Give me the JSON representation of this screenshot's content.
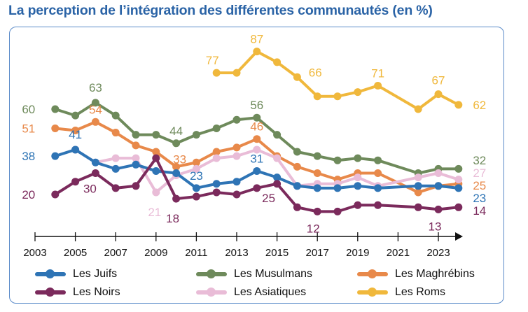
{
  "chart_data": {
    "type": "line",
    "title": "La perception de l’intégration des différentes communautés (en %)",
    "xlabel": "",
    "ylabel": "",
    "xlim": [
      2003,
      2024
    ],
    "ylim": [
      0,
      100
    ],
    "xticks": [
      "2003",
      "2005",
      "2007",
      "2009",
      "2011",
      "2013",
      "2015",
      "2017",
      "2019",
      "2021",
      "2023"
    ],
    "grid": false,
    "legend_position": "bottom",
    "series": [
      {
        "name": "Les Juifs",
        "color": "#2e74b5",
        "x": [
          2004,
          2005,
          2006,
          2007,
          2008,
          2009,
          2010,
          2011,
          2012,
          2013,
          2014,
          2015,
          2016,
          2017,
          2018,
          2019,
          2020,
          2022,
          2023,
          2024
        ],
        "values": [
          38,
          41,
          35,
          32,
          34,
          31,
          30,
          23,
          25,
          26,
          31,
          28,
          24,
          23,
          23,
          24,
          23,
          24,
          24,
          23
        ]
      },
      {
        "name": "Les Musulmans",
        "color": "#6e8a5b",
        "x": [
          2004,
          2005,
          2006,
          2007,
          2008,
          2009,
          2010,
          2011,
          2012,
          2013,
          2014,
          2015,
          2016,
          2017,
          2018,
          2019,
          2020,
          2022,
          2023,
          2024
        ],
        "values": [
          60,
          57,
          63,
          57,
          48,
          48,
          44,
          48,
          51,
          55,
          56,
          48,
          40,
          38,
          36,
          37,
          36,
          30,
          32,
          32
        ]
      },
      {
        "name": "Les Maghrébins",
        "color": "#e8894a",
        "x": [
          2004,
          2005,
          2006,
          2007,
          2008,
          2009,
          2010,
          2011,
          2012,
          2013,
          2014,
          2015,
          2016,
          2017,
          2018,
          2019,
          2020,
          2022,
          2023,
          2024
        ],
        "values": [
          51,
          50,
          54,
          49,
          43,
          40,
          33,
          35,
          40,
          42,
          46,
          38,
          33,
          30,
          27,
          30,
          30,
          21,
          24,
          25
        ]
      },
      {
        "name": "Les Noirs",
        "color": "#7b2a5c",
        "x": [
          2004,
          2005,
          2006,
          2007,
          2008,
          2009,
          2010,
          2011,
          2012,
          2013,
          2014,
          2015,
          2016,
          2017,
          2018,
          2019,
          2020,
          2022,
          2023,
          2024
        ],
        "values": [
          20,
          26,
          30,
          23,
          24,
          37,
          18,
          19,
          21,
          20,
          23,
          25,
          14,
          12,
          12,
          15,
          15,
          14,
          13,
          14
        ]
      },
      {
        "name": "Les Asiatiques",
        "color": "#e9bcd7",
        "x": [
          2005,
          2006,
          2007,
          2008,
          2009,
          2010,
          2011,
          2012,
          2013,
          2014,
          2015,
          2016,
          2017,
          2018,
          2019,
          2020,
          2022,
          2023,
          2024
        ],
        "values": [
          41,
          35,
          37,
          37,
          21,
          29,
          32,
          37,
          38,
          41,
          37,
          24,
          25,
          25,
          28,
          24,
          28,
          30,
          27
        ]
      },
      {
        "name": "Les Roms",
        "color": "#f0b83c",
        "x": [
          2012,
          2013,
          2014,
          2015,
          2016,
          2017,
          2018,
          2019,
          2020,
          2022,
          2023,
          2024
        ],
        "values": [
          77,
          77,
          87,
          82,
          75,
          66,
          66,
          68,
          71,
          60,
          67,
          62
        ]
      }
    ],
    "data_labels": [
      {
        "series": 1,
        "x": 2004,
        "text": "60"
      },
      {
        "series": 1,
        "x": 2006,
        "text": "63"
      },
      {
        "series": 1,
        "x": 2010,
        "text": "44"
      },
      {
        "series": 1,
        "x": 2014,
        "text": "56"
      },
      {
        "series": 1,
        "x": 2024,
        "text": "32"
      },
      {
        "series": 2,
        "x": 2004,
        "text": "51"
      },
      {
        "series": 2,
        "x": 2006,
        "text": "54"
      },
      {
        "series": 2,
        "x": 2010,
        "text": "33"
      },
      {
        "series": 2,
        "x": 2014,
        "text": "46"
      },
      {
        "series": 2,
        "x": 2024,
        "text": "25"
      },
      {
        "series": 0,
        "x": 2004,
        "text": "38"
      },
      {
        "series": 0,
        "x": 2005,
        "text": "41"
      },
      {
        "series": 0,
        "x": 2011,
        "text": "23"
      },
      {
        "series": 0,
        "x": 2014,
        "text": "31"
      },
      {
        "series": 0,
        "x": 2024,
        "text": "23"
      },
      {
        "series": 3,
        "x": 2004,
        "text": "20"
      },
      {
        "series": 3,
        "x": 2006,
        "text": "30"
      },
      {
        "series": 3,
        "x": 2010,
        "text": "18"
      },
      {
        "series": 3,
        "x": 2015,
        "text": "25"
      },
      {
        "series": 3,
        "x": 2017,
        "text": "12"
      },
      {
        "series": 3,
        "x": 2023,
        "text": "13"
      },
      {
        "series": 3,
        "x": 2024,
        "text": "14"
      },
      {
        "series": 4,
        "x": 2009,
        "text": "21"
      },
      {
        "series": 4,
        "x": 2024,
        "text": "27"
      },
      {
        "series": 5,
        "x": 2012,
        "text": "77"
      },
      {
        "series": 5,
        "x": 2014,
        "text": "87"
      },
      {
        "series": 5,
        "x": 2017,
        "text": "66"
      },
      {
        "series": 5,
        "x": 2020,
        "text": "71"
      },
      {
        "series": 5,
        "x": 2023,
        "text": "67"
      },
      {
        "series": 5,
        "x": 2024,
        "text": "62"
      }
    ]
  }
}
